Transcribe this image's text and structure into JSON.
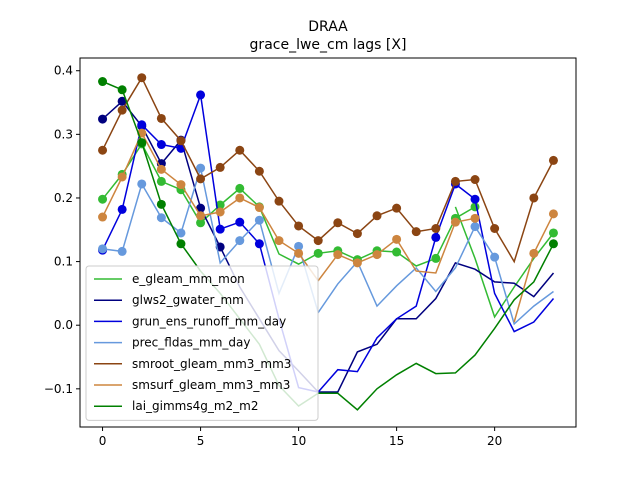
{
  "chart_data": {
    "type": "line",
    "title": "DRAA",
    "subtitle": "grace_lwe_cm lags [X]",
    "xlabel": "",
    "ylabel": "",
    "xlim": [
      -1.15,
      24.15
    ],
    "ylim": [
      -0.16,
      0.42
    ],
    "xticks": [
      0,
      5,
      10,
      15,
      20
    ],
    "yticks": [
      -0.1,
      0.0,
      0.1,
      0.2,
      0.3,
      0.4
    ],
    "grid": false,
    "legend": "lower-left",
    "series": [
      {
        "name": "e_gleam_mm_mon",
        "color": "#33bb33",
        "values": [
          0.198,
          0.237,
          0.285,
          0.226,
          0.213,
          0.161,
          0.189,
          0.215,
          0.186,
          0.112,
          0.096,
          0.113,
          0.117,
          0.103,
          0.117,
          0.115,
          0.093,
          0.105,
          0.168,
          0.186,
          null,
          null,
          null,
          0.145
        ],
        "markers": [
          1,
          1,
          1,
          1,
          1,
          1,
          1,
          1,
          1,
          0,
          0,
          1,
          1,
          1,
          1,
          1,
          0,
          1,
          1,
          1,
          0,
          0,
          0,
          1
        ],
        "tail": [
          0.186,
          0.105,
          0.013,
          0.06,
          0.105,
          0.145
        ]
      },
      {
        "name": "glws2_gwater_mm",
        "color": "#00007f",
        "values": [
          0.324,
          0.352,
          0.313,
          0.254,
          0.291,
          0.184,
          0.123,
          0.06,
          0.01,
          -0.04,
          -0.072,
          -0.105,
          -0.105,
          -0.042,
          -0.03,
          0.01,
          0.01,
          0.042,
          0.098,
          0.088,
          0.068,
          0.066,
          0.045,
          0.082
        ],
        "markers": [
          1,
          1,
          1,
          1,
          1,
          1,
          1,
          0,
          0,
          0,
          0,
          0,
          0,
          0,
          0,
          0,
          0,
          0,
          0,
          0,
          0,
          0,
          0,
          0
        ]
      },
      {
        "name": "grun_ens_runoff_mm_day",
        "color": "#0000dd",
        "values": [
          0.118,
          0.182,
          0.315,
          0.284,
          0.278,
          0.362,
          0.151,
          0.162,
          0.128,
          0.01,
          -0.098,
          -0.105,
          -0.07,
          -0.073,
          -0.02,
          0.01,
          0.03,
          0.138,
          0.222,
          0.198,
          0.05,
          -0.01,
          0.005,
          0.042
        ],
        "markers": [
          1,
          1,
          1,
          1,
          1,
          1,
          1,
          1,
          1,
          0,
          0,
          0,
          0,
          0,
          0,
          0,
          0,
          1,
          1,
          1,
          0,
          0,
          0,
          0
        ]
      },
      {
        "name": "prec_fldas_mm_day",
        "color": "#6699dd",
        "values": [
          0.12,
          0.116,
          0.222,
          0.169,
          0.145,
          0.247,
          0.098,
          0.133,
          0.165,
          0.05,
          0.124,
          0.02,
          0.065,
          0.1,
          0.03,
          0.062,
          0.09,
          0.053,
          0.09,
          0.155,
          0.107,
          0.002,
          0.03,
          0.053
        ],
        "markers": [
          1,
          1,
          1,
          1,
          1,
          1,
          0,
          1,
          1,
          0,
          1,
          0,
          0,
          0,
          0,
          0,
          0,
          0,
          0,
          1,
          1,
          0,
          0,
          0
        ]
      },
      {
        "name": "smroot_gleam_mm3_mm3",
        "color": "#8b4513",
        "values": [
          0.275,
          0.338,
          0.389,
          0.325,
          0.29,
          0.23,
          0.248,
          0.275,
          0.242,
          0.195,
          0.156,
          0.133,
          0.161,
          0.144,
          0.172,
          0.184,
          0.147,
          0.152,
          0.226,
          0.229,
          0.152,
          0.1,
          0.2,
          0.259
        ],
        "markers": [
          1,
          1,
          1,
          1,
          1,
          1,
          1,
          1,
          1,
          1,
          1,
          1,
          1,
          1,
          1,
          1,
          1,
          1,
          1,
          1,
          1,
          0,
          1,
          1
        ]
      },
      {
        "name": "smsurf_gleam_mm3_mm3",
        "color": "#cd853f",
        "values": [
          0.17,
          0.233,
          0.302,
          0.245,
          0.221,
          0.172,
          0.178,
          0.2,
          0.185,
          0.133,
          0.113,
          0.07,
          0.111,
          0.098,
          0.111,
          0.135,
          0.085,
          0.082,
          0.162,
          0.168,
          null,
          0.005,
          0.113,
          0.175
        ],
        "markers": [
          1,
          1,
          1,
          1,
          1,
          1,
          1,
          1,
          1,
          1,
          1,
          0,
          1,
          1,
          1,
          1,
          0,
          0,
          1,
          1,
          0,
          0,
          1,
          1
        ]
      },
      {
        "name": "lai_gimms4g_m2_m2",
        "color": "#008000",
        "values": [
          0.383,
          0.37,
          0.287,
          0.19,
          0.128,
          0.085,
          0.05,
          0.01,
          -0.03,
          -0.095,
          -0.127,
          -0.107,
          -0.107,
          -0.133,
          -0.1,
          -0.078,
          -0.06,
          -0.076,
          -0.075,
          -0.047,
          -0.005,
          0.04,
          0.068,
          0.128
        ],
        "markers": [
          1,
          1,
          1,
          1,
          1,
          0,
          0,
          0,
          0,
          0,
          0,
          0,
          0,
          0,
          0,
          0,
          0,
          0,
          0,
          0,
          0,
          0,
          0,
          1
        ]
      }
    ]
  }
}
